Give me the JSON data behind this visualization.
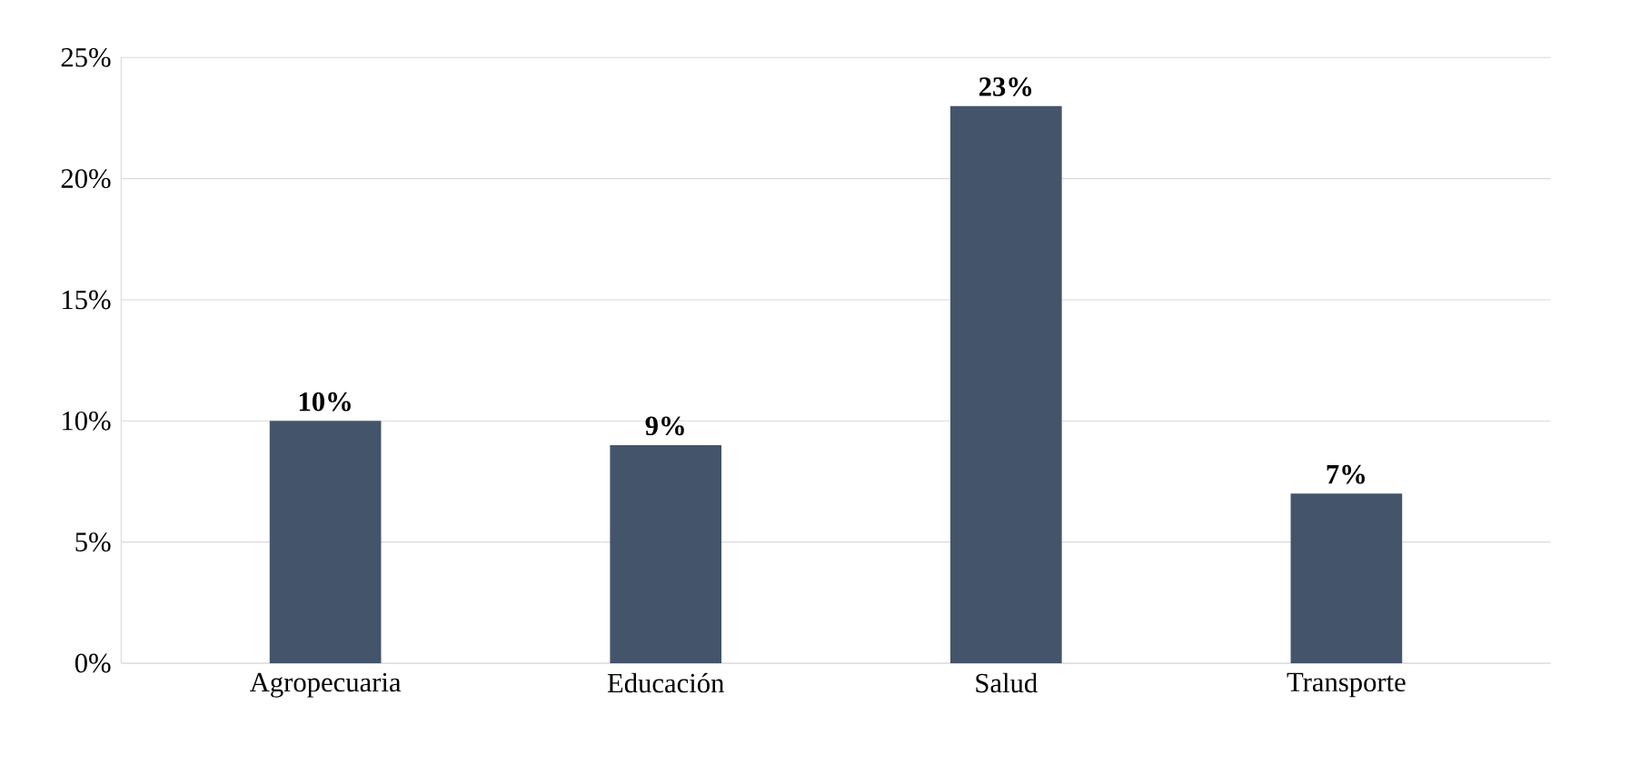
{
  "chart_data": {
    "type": "bar",
    "categories": [
      "Agropecuaria",
      "Educación",
      "Salud",
      "Transporte"
    ],
    "values": [
      10,
      9,
      23,
      7
    ],
    "value_labels": [
      "10%",
      "9%",
      "23%",
      "7%"
    ],
    "color": "#44546a",
    "ylim": [
      0,
      25
    ],
    "yticks": [
      {
        "value": 0,
        "label": "0%"
      },
      {
        "value": 5,
        "label": "5%"
      },
      {
        "value": 10,
        "label": "10%"
      },
      {
        "value": 15,
        "label": "15%"
      },
      {
        "value": 20,
        "label": "20%"
      },
      {
        "value": 25,
        "label": "25%"
      }
    ],
    "grid": "y"
  }
}
